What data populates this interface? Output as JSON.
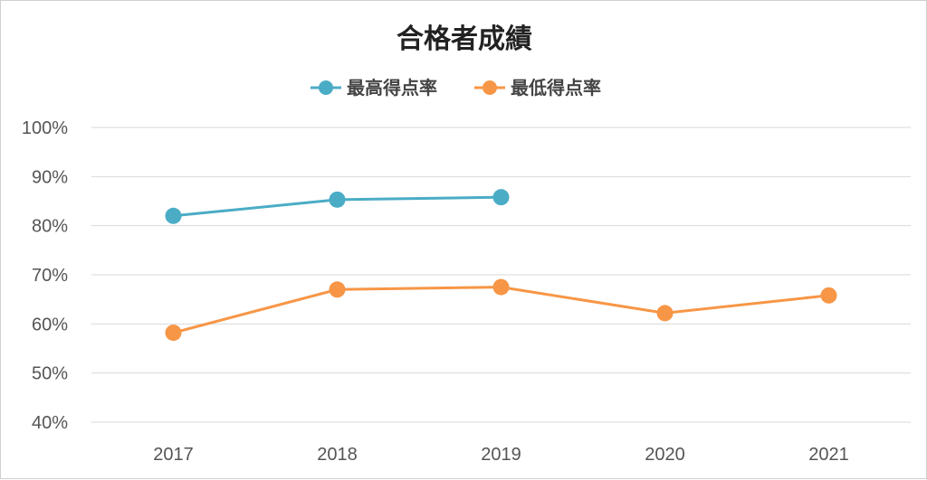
{
  "chart_data": {
    "type": "line",
    "title": "合格者成績",
    "xlabel": "",
    "ylabel": "",
    "categories": [
      "2017",
      "2018",
      "2019",
      "2020",
      "2021"
    ],
    "yticks": [
      "40%",
      "50%",
      "60%",
      "70%",
      "80%",
      "90%",
      "100%"
    ],
    "ylim": [
      40,
      100
    ],
    "grid": true,
    "legend_position": "top",
    "series": [
      {
        "name": "最高得点率",
        "color": "#4bacc6",
        "values": [
          82,
          85.3,
          85.8,
          null,
          null
        ]
      },
      {
        "name": "最低得点率",
        "color": "#f79646",
        "values": [
          58.2,
          67,
          67.5,
          62.2,
          65.8
        ]
      }
    ]
  }
}
